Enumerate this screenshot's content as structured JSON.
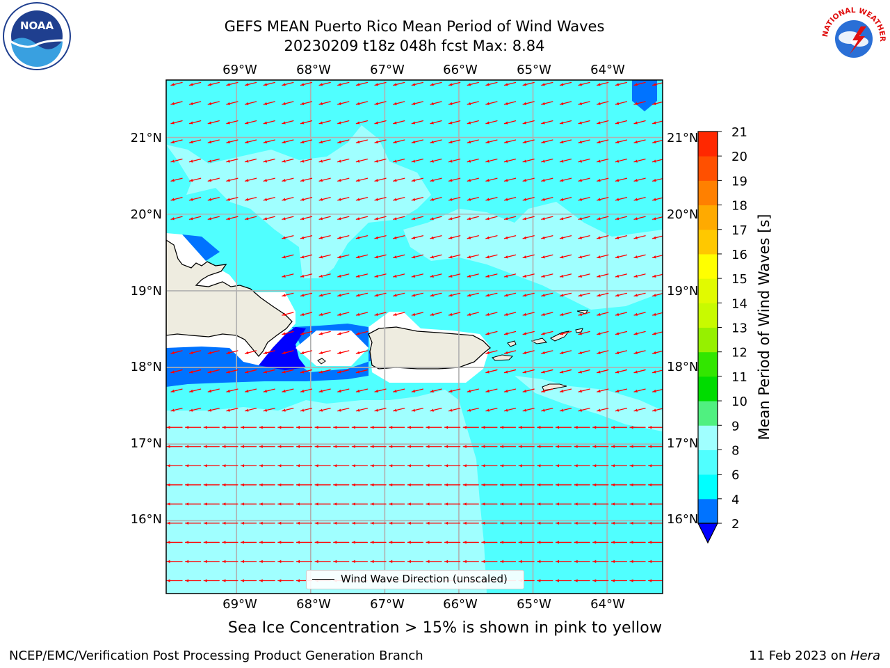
{
  "title": {
    "line1": "GEFS MEAN Puerto Rico Mean Period of Wind Waves",
    "line2": "20230209 t18z 048h fcst   Max: 8.84"
  },
  "map": {
    "lon_range": [
      -69.95,
      -63.25
    ],
    "lat_range": [
      15.05,
      21.75
    ],
    "lon_ticks": [
      "69°W",
      "68°W",
      "67°W",
      "66°W",
      "65°W",
      "64°W"
    ],
    "lat_ticks": [
      "16°N",
      "17°N",
      "18°N",
      "19°N",
      "20°N",
      "21°N"
    ],
    "gridlines": true,
    "arrow_color": "#ff0000",
    "land_color": "#eeece0",
    "arrow_direction": "from east-northeast (toward west)"
  },
  "legend": {
    "label": "Wind Wave Direction (unscaled)",
    "placement": "bottom-center"
  },
  "colorbar": {
    "label": "Mean Period of Wind Waves [s]",
    "ticks": [
      "2",
      "4",
      "6",
      "8",
      "9",
      "10",
      "11",
      "12",
      "13",
      "14",
      "15",
      "16",
      "17",
      "18",
      "19",
      "20",
      "21"
    ],
    "colors": [
      "#0000ff",
      "#0073ff",
      "#00ffff",
      "#50ffff",
      "#a0ffff",
      "#50f080",
      "#00dc00",
      "#32e600",
      "#96f000",
      "#c8fa00",
      "#e1fa00",
      "#ffff00",
      "#ffc800",
      "#ffaa00",
      "#ff8000",
      "#ff5000",
      "#ff2800",
      "#ff0000"
    ]
  },
  "chart_data": {
    "type": "heatmap",
    "title": "GEFS MEAN Puerto Rico Mean Period of Wind Waves",
    "subtitle": "20230209 t18z 048h fcst   Max: 8.84",
    "xlabel": "",
    "ylabel": "",
    "colorbar_label": "Mean Period of Wind Waves [s]",
    "levels": [
      2,
      4,
      6,
      8,
      9,
      10,
      11,
      12,
      13,
      14,
      15,
      16,
      17,
      18,
      19,
      20,
      21
    ],
    "max_value": 8.84,
    "xlim": [
      -69.95,
      -63.25
    ],
    "ylim": [
      15.05,
      21.75
    ],
    "grid": true
  },
  "caption": "Sea Ice Concentration > 15% is shown in pink to yellow",
  "footer": {
    "left": "NCEP/EMC/Verification Post Processing Product Generation Branch",
    "right_date": "11 Feb 2023 on ",
    "right_host": "Hera"
  },
  "logos": {
    "noaa_text": "NOAA",
    "nws_text": "NATIONAL WEATHER SERVICE"
  }
}
